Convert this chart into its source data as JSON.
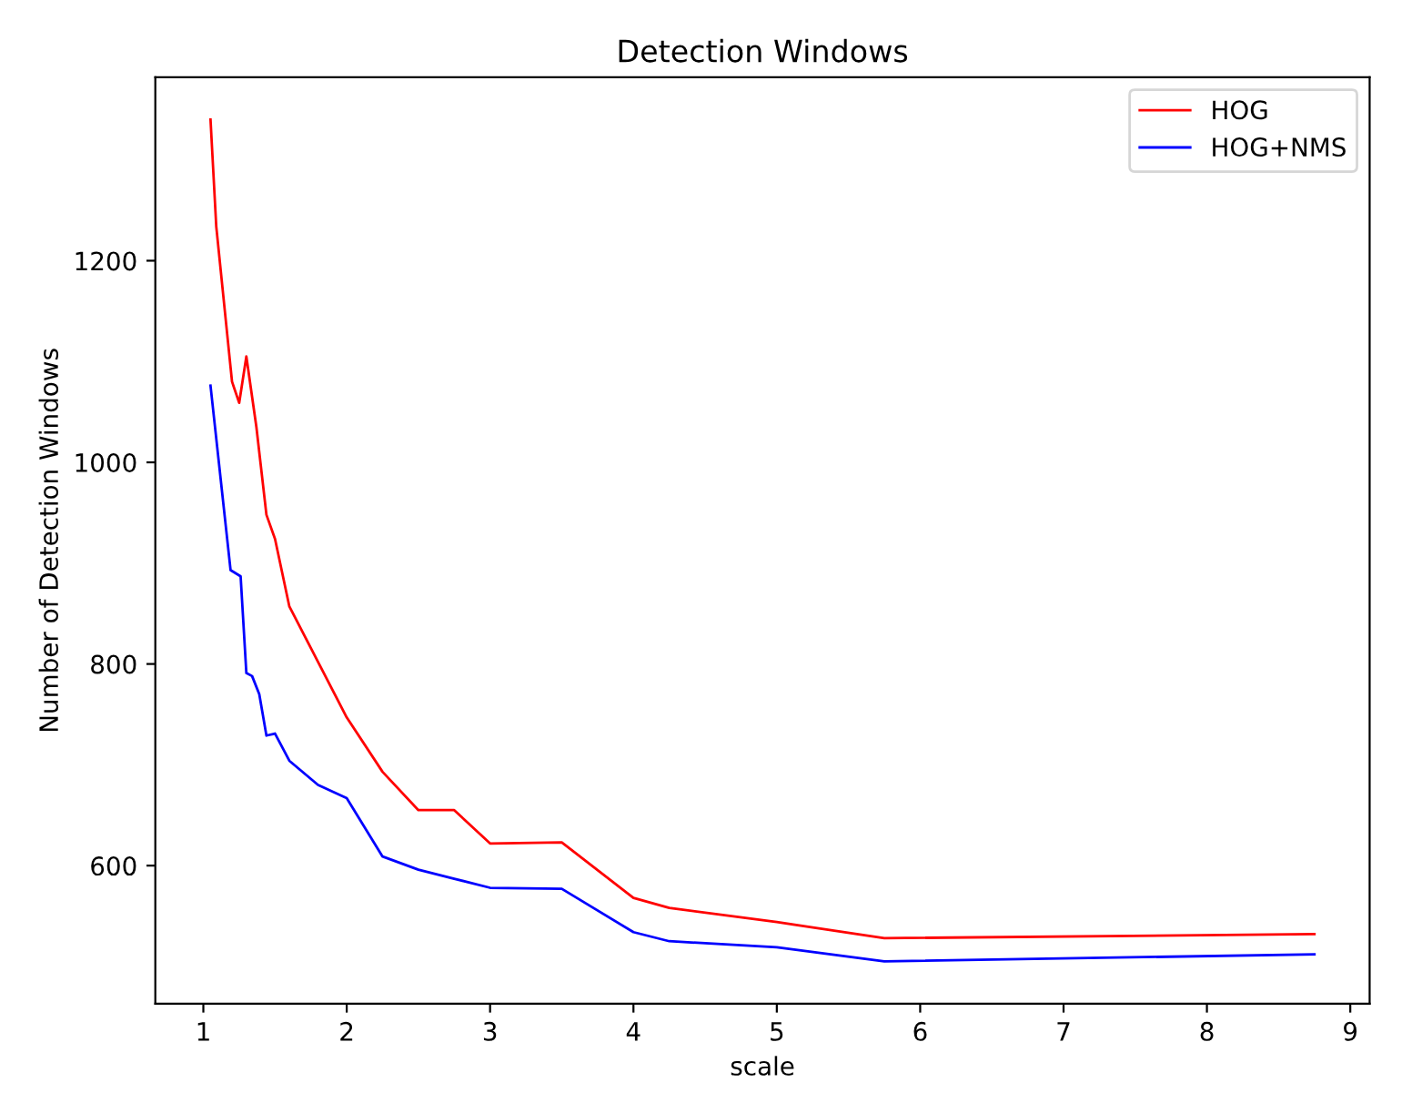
{
  "chart_data": {
    "type": "line",
    "title": "Detection Windows",
    "xlabel": "scale",
    "ylabel": "Number of Detection Windows",
    "series": [
      {
        "name": "HOG",
        "color": "#ff0000",
        "x": [
          1.05,
          1.09,
          1.2,
          1.25,
          1.3,
          1.37,
          1.44,
          1.5,
          1.6,
          2.0,
          2.25,
          2.5,
          2.75,
          3.0,
          3.5,
          4.0,
          4.25,
          5.0,
          5.75,
          8.75
        ],
        "values": [
          1340,
          1234,
          1080,
          1059,
          1105,
          1035,
          948,
          924,
          857,
          747,
          693,
          655,
          655,
          622,
          623,
          568,
          558,
          544,
          528,
          532
        ]
      },
      {
        "name": "HOG+NMS",
        "color": "#0000ff",
        "x": [
          1.05,
          1.19,
          1.26,
          1.3,
          1.34,
          1.39,
          1.44,
          1.5,
          1.6,
          1.8,
          2.0,
          2.25,
          2.5,
          2.75,
          3.0,
          3.5,
          4.0,
          4.25,
          5.0,
          5.75,
          8.75
        ],
        "values": [
          1076,
          893,
          887,
          791,
          788,
          770,
          729,
          731,
          704,
          680,
          667,
          609,
          596,
          587,
          578,
          577,
          534,
          525,
          519,
          505,
          512
        ]
      }
    ],
    "xlim": [
      0.665,
      9.135
    ],
    "xticks": [
      1,
      2,
      3,
      4,
      5,
      6,
      7,
      8,
      9
    ],
    "ylim": [
      463,
      1382
    ],
    "yticks": [
      600,
      800,
      1000,
      1200
    ],
    "legend": "top right",
    "grid": false,
    "marker": "none",
    "line_style": "solid"
  }
}
